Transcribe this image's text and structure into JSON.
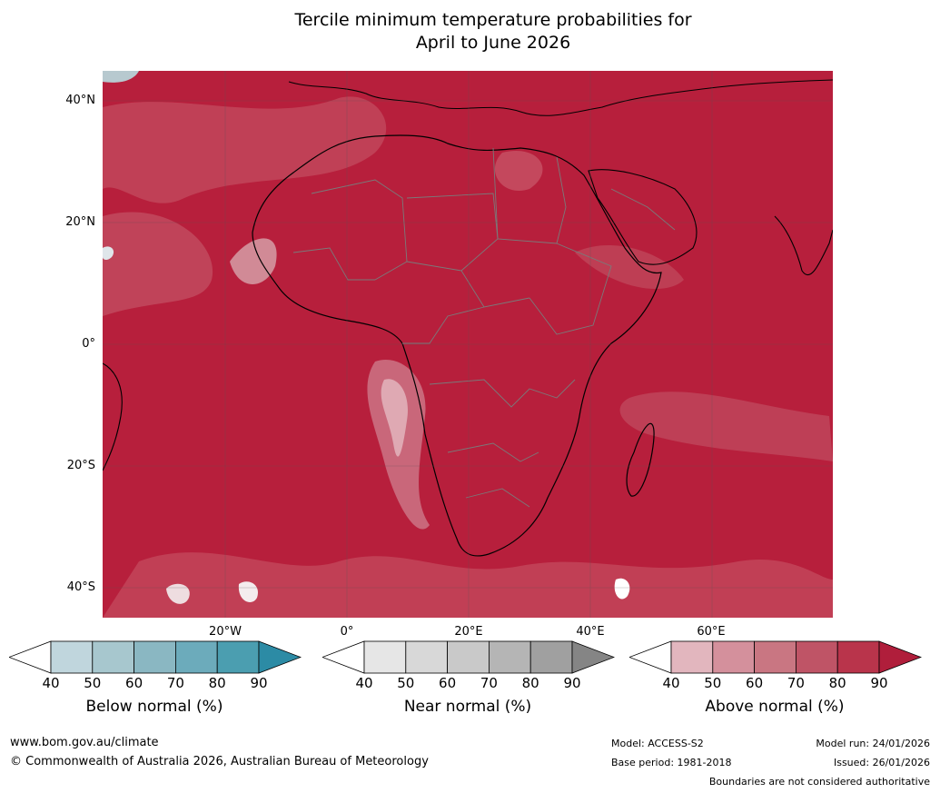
{
  "title": {
    "line1": "Tercile minimum temperature probabilities for",
    "line2": "April to June 2026"
  },
  "map": {
    "lat_labels": [
      "40°N",
      "20°N",
      "0°",
      "20°S",
      "40°S"
    ],
    "lon_labels": [
      "20°W",
      "0°",
      "20°E",
      "40°E",
      "60°E"
    ],
    "dominant_color": "#b71f3c"
  },
  "colorbars": [
    {
      "name": "below",
      "title": "Below normal (%)",
      "ticks": [
        "40",
        "50",
        "60",
        "70",
        "80",
        "90"
      ],
      "colors": [
        "#ffffff",
        "#c0d6dd",
        "#a7c7ce",
        "#8ab7c2",
        "#6cabbb",
        "#4b9eb0",
        "#2c8ba5"
      ]
    },
    {
      "name": "near",
      "title": "Near normal (%)",
      "ticks": [
        "40",
        "50",
        "60",
        "70",
        "80",
        "90"
      ],
      "colors": [
        "#ffffff",
        "#e6e6e6",
        "#d8d8d8",
        "#c9c9c9",
        "#b5b5b5",
        "#a0a0a0",
        "#858585"
      ]
    },
    {
      "name": "above",
      "title": "Above normal (%)",
      "ticks": [
        "40",
        "50",
        "60",
        "70",
        "80",
        "90"
      ],
      "colors": [
        "#ffffff",
        "#e2b6be",
        "#d4909c",
        "#c97682",
        "#bf5466",
        "#b9344b",
        "#b01e3b"
      ]
    }
  ],
  "footer": {
    "website": "www.bom.gov.au/climate",
    "copyright": "© Commonwealth of Australia 2026, Australian Bureau of Meteorology",
    "model": "Model: ACCESS-S2",
    "base_period": "Base period: 1981-2018",
    "model_run": "Model run: 24/01/2026",
    "issued": "Issued: 26/01/2026",
    "disclaimer": "Boundaries are not considered authoritative"
  }
}
